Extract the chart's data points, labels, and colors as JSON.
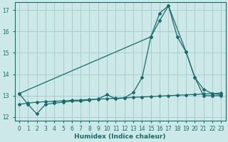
{
  "xlabel": "Humidex (Indice chaleur)",
  "bg_color": "#cce8e8",
  "grid_color": "#aacccc",
  "line_color": "#1a6b6b",
  "xlim": [
    -0.5,
    23.5
  ],
  "ylim": [
    11.85,
    17.35
  ],
  "yticks": [
    12,
    13,
    14,
    15,
    16,
    17
  ],
  "xticks": [
    0,
    1,
    2,
    3,
    4,
    5,
    6,
    7,
    8,
    9,
    10,
    11,
    12,
    13,
    14,
    15,
    16,
    17,
    18,
    19,
    20,
    21,
    22,
    23
  ],
  "curve_x": [
    0,
    1,
    2,
    3,
    4,
    5,
    6,
    7,
    8,
    9,
    10,
    11,
    12,
    13,
    14,
    15,
    16,
    17,
    18,
    19,
    20,
    21,
    22,
    23
  ],
  "curve_y": [
    13.1,
    12.6,
    12.15,
    12.6,
    12.65,
    12.7,
    12.75,
    12.75,
    12.8,
    12.85,
    13.05,
    12.85,
    12.9,
    13.15,
    13.85,
    15.75,
    16.85,
    17.2,
    15.75,
    15.05,
    13.85,
    13.0,
    13.0,
    13.0
  ],
  "regr_x": [
    0,
    1,
    2,
    3,
    4,
    5,
    6,
    7,
    8,
    9,
    10,
    11,
    12,
    13,
    14,
    15,
    16,
    17,
    18,
    19,
    20,
    21,
    22,
    23
  ],
  "regr_y": [
    12.6,
    12.65,
    12.7,
    12.72,
    12.74,
    12.76,
    12.78,
    12.8,
    12.82,
    12.84,
    12.86,
    12.88,
    12.9,
    12.92,
    12.94,
    12.96,
    12.98,
    13.0,
    13.02,
    13.04,
    13.06,
    13.08,
    13.1,
    13.12
  ],
  "line_x": [
    0,
    15,
    16,
    17,
    19,
    20,
    21,
    22,
    23
  ],
  "line_y": [
    13.1,
    15.75,
    16.5,
    17.2,
    15.05,
    13.85,
    13.3,
    13.1,
    13.05
  ]
}
